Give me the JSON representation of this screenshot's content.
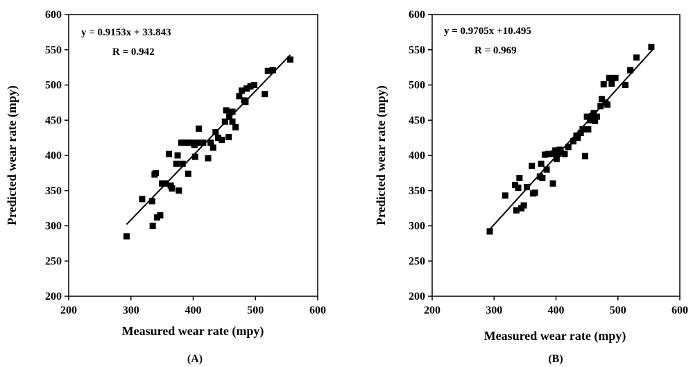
{
  "chart_data": [
    {
      "type": "scatter",
      "panel_label": "(A)",
      "xlabel": "Measured wear rate (mpy)",
      "ylabel": "Predicted wear rate (mpy)",
      "xlim": [
        200,
        600
      ],
      "ylim": [
        200,
        600
      ],
      "xticks": [
        "200",
        "300",
        "400",
        "500",
        "600"
      ],
      "yticks": [
        "200",
        "250",
        "300",
        "350",
        "400",
        "450",
        "500",
        "550",
        "600"
      ],
      "equation": "y = 0.9153x + 33.843",
      "r_text": "R = 0.942",
      "fit": {
        "slope": 0.9153,
        "intercept": 33.843,
        "x_range": [
          293,
          556
        ]
      },
      "points": [
        [
          293,
          285
        ],
        [
          318,
          338
        ],
        [
          334,
          335
        ],
        [
          335,
          300
        ],
        [
          338,
          373
        ],
        [
          340,
          375
        ],
        [
          342,
          312
        ],
        [
          347,
          315
        ],
        [
          350,
          360
        ],
        [
          356,
          360
        ],
        [
          361,
          402
        ],
        [
          364,
          357
        ],
        [
          366,
          353
        ],
        [
          373,
          388
        ],
        [
          375,
          400
        ],
        [
          377,
          350
        ],
        [
          381,
          418
        ],
        [
          383,
          388
        ],
        [
          387,
          418
        ],
        [
          392,
          374
        ],
        [
          393,
          418
        ],
        [
          398,
          418
        ],
        [
          402,
          415
        ],
        [
          403,
          398
        ],
        [
          407,
          418
        ],
        [
          409,
          438
        ],
        [
          416,
          418
        ],
        [
          424,
          396
        ],
        [
          428,
          418
        ],
        [
          432,
          411
        ],
        [
          436,
          433
        ],
        [
          440,
          425
        ],
        [
          446,
          422
        ],
        [
          451,
          448
        ],
        [
          453,
          464
        ],
        [
          457,
          426
        ],
        [
          458,
          455
        ],
        [
          463,
          462
        ],
        [
          463,
          448
        ],
        [
          468,
          440
        ],
        [
          474,
          484
        ],
        [
          478,
          492
        ],
        [
          482,
          478
        ],
        [
          484,
          476
        ],
        [
          486,
          495
        ],
        [
          492,
          498
        ],
        [
          498,
          500
        ],
        [
          515,
          487
        ],
        [
          520,
          520
        ],
        [
          528,
          521
        ],
        [
          556,
          536
        ]
      ]
    },
    {
      "type": "scatter",
      "panel_label": "(B)",
      "xlabel": "Measured wear rate (mpy)",
      "ylabel": "Predicted wear rate (mpy)",
      "xlim": [
        200,
        600
      ],
      "ylim": [
        200,
        600
      ],
      "xticks": [
        "200",
        "300",
        "400",
        "500",
        "600"
      ],
      "yticks": [
        "200",
        "250",
        "300",
        "350",
        "400",
        "450",
        "500",
        "550",
        "600"
      ],
      "equation": "y = 0.9705x +10.495",
      "r_text": "R = 0.969",
      "fit": {
        "slope": 0.9705,
        "intercept": 10.495,
        "x_range": [
          293,
          556
        ]
      },
      "points": [
        [
          293,
          292
        ],
        [
          318,
          343
        ],
        [
          334,
          358
        ],
        [
          336,
          322
        ],
        [
          339,
          354
        ],
        [
          341,
          368
        ],
        [
          344,
          325
        ],
        [
          348,
          329
        ],
        [
          353,
          355
        ],
        [
          361,
          385
        ],
        [
          363,
          346
        ],
        [
          366,
          347
        ],
        [
          374,
          370
        ],
        [
          376,
          388
        ],
        [
          378,
          368
        ],
        [
          382,
          401
        ],
        [
          385,
          380
        ],
        [
          387,
          402
        ],
        [
          392,
          402
        ],
        [
          395,
          360
        ],
        [
          397,
          403
        ],
        [
          399,
          407
        ],
        [
          401,
          395
        ],
        [
          403,
          402
        ],
        [
          406,
          408
        ],
        [
          408,
          404
        ],
        [
          414,
          402
        ],
        [
          420,
          412
        ],
        [
          428,
          420
        ],
        [
          433,
          428
        ],
        [
          435,
          425
        ],
        [
          440,
          432
        ],
        [
          443,
          437
        ],
        [
          447,
          399
        ],
        [
          450,
          455
        ],
        [
          452,
          437
        ],
        [
          455,
          450
        ],
        [
          458,
          456
        ],
        [
          461,
          460
        ],
        [
          463,
          449
        ],
        [
          466,
          455
        ],
        [
          472,
          470
        ],
        [
          474,
          480
        ],
        [
          477,
          501
        ],
        [
          480,
          475
        ],
        [
          483,
          472
        ],
        [
          486,
          510
        ],
        [
          490,
          502
        ],
        [
          496,
          510
        ],
        [
          512,
          500
        ],
        [
          520,
          521
        ],
        [
          530,
          539
        ],
        [
          554,
          554
        ]
      ]
    }
  ]
}
